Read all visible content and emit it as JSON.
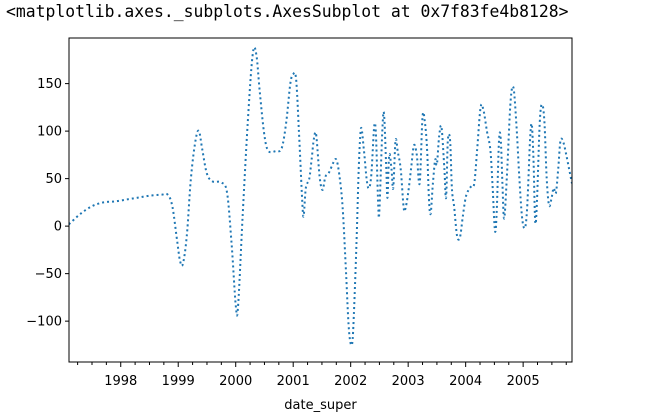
{
  "cell_output": {
    "repr_text": "<matplotlib.axes._subplots.AxesSubplot at 0x7f83fe4b8128>"
  },
  "colors": {
    "series": "#1f77b4",
    "axes": "#000000",
    "background": "#ffffff"
  },
  "chart_data": {
    "type": "line",
    "line_style": "dotted",
    "xlabel": "date_super",
    "ylabel": "",
    "title": "",
    "grid": false,
    "legend": "none",
    "xlim": [
      1997.1,
      2005.85
    ],
    "ylim": [
      -143,
      198
    ],
    "x_ticks": [
      1998,
      1999,
      2000,
      2001,
      2002,
      2003,
      2004,
      2005
    ],
    "x_tick_labels": [
      "1998",
      "1999",
      "2000",
      "2001",
      "2002",
      "2003",
      "2004",
      "2005"
    ],
    "y_ticks": [
      150,
      100,
      50,
      0,
      -50,
      -100
    ],
    "y_tick_labels": [
      "150",
      "100",
      "50",
      "0",
      "−50",
      "−100"
    ],
    "series": [
      {
        "values_xy": [
          [
            1997.1,
            2
          ],
          [
            1997.3,
            13
          ],
          [
            1997.5,
            21
          ],
          [
            1997.7,
            25
          ],
          [
            1997.9,
            26
          ],
          [
            1998.1,
            28
          ],
          [
            1998.3,
            30
          ],
          [
            1998.5,
            32
          ],
          [
            1998.7,
            33
          ],
          [
            1998.82,
            33
          ],
          [
            1998.9,
            20
          ],
          [
            1998.98,
            -15
          ],
          [
            1999.03,
            -36
          ],
          [
            1999.08,
            -40
          ],
          [
            1999.15,
            -10
          ],
          [
            1999.22,
            50
          ],
          [
            1999.3,
            90
          ],
          [
            1999.36,
            100
          ],
          [
            1999.42,
            80
          ],
          [
            1999.5,
            55
          ],
          [
            1999.6,
            47
          ],
          [
            1999.75,
            46
          ],
          [
            1999.85,
            35
          ],
          [
            1999.93,
            -20
          ],
          [
            2000.0,
            -83
          ],
          [
            2000.04,
            -85
          ],
          [
            2000.12,
            10
          ],
          [
            2000.22,
            120
          ],
          [
            2000.3,
            183
          ],
          [
            2000.36,
            180
          ],
          [
            2000.42,
            140
          ],
          [
            2000.5,
            95
          ],
          [
            2000.57,
            79
          ],
          [
            2000.7,
            79
          ],
          [
            2000.8,
            82
          ],
          [
            2000.88,
            110
          ],
          [
            2000.95,
            150
          ],
          [
            2001.0,
            160
          ],
          [
            2001.05,
            155
          ],
          [
            2001.1,
            100
          ],
          [
            2001.15,
            35
          ],
          [
            2001.18,
            10
          ],
          [
            2001.22,
            40
          ],
          [
            2001.28,
            50
          ],
          [
            2001.32,
            70
          ],
          [
            2001.36,
            92
          ],
          [
            2001.4,
            96
          ],
          [
            2001.46,
            52
          ],
          [
            2001.51,
            38
          ],
          [
            2001.56,
            52
          ],
          [
            2001.62,
            56
          ],
          [
            2001.7,
            67
          ],
          [
            2001.75,
            70
          ],
          [
            2001.8,
            55
          ],
          [
            2001.86,
            20
          ],
          [
            2001.92,
            -50
          ],
          [
            2001.97,
            -110
          ],
          [
            2002.02,
            -125
          ],
          [
            2002.05,
            -100
          ],
          [
            2002.1,
            -20
          ],
          [
            2002.14,
            60
          ],
          [
            2002.18,
            103
          ],
          [
            2002.23,
            80
          ],
          [
            2002.28,
            48
          ],
          [
            2002.32,
            40
          ],
          [
            2002.36,
            55
          ],
          [
            2002.41,
            105
          ],
          [
            2002.44,
            95
          ],
          [
            2002.48,
            20
          ],
          [
            2002.5,
            17
          ],
          [
            2002.55,
            100
          ],
          [
            2002.58,
            118
          ],
          [
            2002.62,
            60
          ],
          [
            2002.64,
            30
          ],
          [
            2002.67,
            75
          ],
          [
            2002.71,
            60
          ],
          [
            2002.74,
            40
          ],
          [
            2002.78,
            90
          ],
          [
            2002.82,
            78
          ],
          [
            2002.87,
            60
          ],
          [
            2002.92,
            20
          ],
          [
            2002.95,
            18
          ],
          [
            2003.0,
            35
          ],
          [
            2003.05,
            60
          ],
          [
            2003.1,
            85
          ],
          [
            2003.15,
            75
          ],
          [
            2003.2,
            45
          ],
          [
            2003.25,
            115
          ],
          [
            2003.29,
            110
          ],
          [
            2003.33,
            80
          ],
          [
            2003.36,
            30
          ],
          [
            2003.39,
            13
          ],
          [
            2003.43,
            45
          ],
          [
            2003.47,
            70
          ],
          [
            2003.5,
            65
          ],
          [
            2003.54,
            95
          ],
          [
            2003.58,
            104
          ],
          [
            2003.63,
            60
          ],
          [
            2003.66,
            30
          ],
          [
            2003.69,
            90
          ],
          [
            2003.73,
            90
          ],
          [
            2003.76,
            40
          ],
          [
            2003.8,
            20
          ],
          [
            2003.85,
            -10
          ],
          [
            2003.9,
            -12
          ],
          [
            2003.95,
            10
          ],
          [
            2004.0,
            30
          ],
          [
            2004.05,
            38
          ],
          [
            2004.1,
            42
          ],
          [
            2004.15,
            45
          ],
          [
            2004.2,
            80
          ],
          [
            2004.26,
            125
          ],
          [
            2004.31,
            122
          ],
          [
            2004.37,
            100
          ],
          [
            2004.43,
            80
          ],
          [
            2004.47,
            40
          ],
          [
            2004.51,
            -5
          ],
          [
            2004.54,
            15
          ],
          [
            2004.58,
            90
          ],
          [
            2004.61,
            92
          ],
          [
            2004.64,
            45
          ],
          [
            2004.67,
            8
          ],
          [
            2004.72,
            55
          ],
          [
            2004.78,
            130
          ],
          [
            2004.83,
            146
          ],
          [
            2004.88,
            110
          ],
          [
            2004.93,
            55
          ],
          [
            2004.98,
            10
          ],
          [
            2005.03,
            -2
          ],
          [
            2005.07,
            20
          ],
          [
            2005.12,
            90
          ],
          [
            2005.15,
            107
          ],
          [
            2005.18,
            70
          ],
          [
            2005.21,
            5
          ],
          [
            2005.24,
            25
          ],
          [
            2005.29,
            110
          ],
          [
            2005.33,
            128
          ],
          [
            2005.37,
            110
          ],
          [
            2005.41,
            50
          ],
          [
            2005.45,
            22
          ],
          [
            2005.49,
            28
          ],
          [
            2005.53,
            40
          ],
          [
            2005.57,
            35
          ],
          [
            2005.61,
            60
          ],
          [
            2005.65,
            90
          ],
          [
            2005.7,
            88
          ],
          [
            2005.75,
            75
          ],
          [
            2005.8,
            60
          ],
          [
            2005.85,
            45
          ]
        ]
      }
    ]
  }
}
